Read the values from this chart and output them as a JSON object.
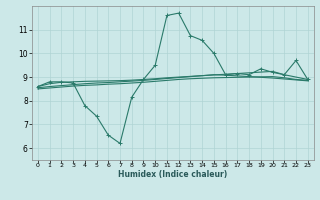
{
  "xlabel": "Humidex (Indice chaleur)",
  "background_color": "#cce8e8",
  "line_color": "#2a7a6a",
  "x_ticks": [
    0,
    1,
    2,
    3,
    4,
    5,
    6,
    7,
    8,
    9,
    10,
    11,
    12,
    13,
    14,
    15,
    16,
    17,
    18,
    19,
    20,
    21,
    22,
    23
  ],
  "y_ticks": [
    6,
    7,
    8,
    9,
    10,
    11
  ],
  "xlim": [
    -0.5,
    23.5
  ],
  "ylim": [
    5.5,
    12.0
  ],
  "series1_x": [
    0,
    1,
    2,
    3,
    4,
    5,
    6,
    7,
    8,
    9,
    10,
    11,
    12,
    13,
    14,
    15,
    16,
    17,
    18,
    19,
    20,
    21,
    22,
    23
  ],
  "series1_y": [
    8.6,
    8.8,
    8.8,
    8.75,
    7.8,
    7.35,
    6.55,
    6.2,
    8.15,
    8.9,
    9.5,
    11.6,
    11.7,
    10.75,
    10.55,
    10.0,
    9.1,
    9.15,
    9.1,
    9.35,
    9.2,
    9.1,
    9.7,
    8.9
  ],
  "series2_x": [
    0,
    1,
    2,
    3,
    4,
    5,
    6,
    7,
    8,
    9,
    10,
    11,
    12,
    13,
    14,
    15,
    16,
    17,
    18,
    19,
    20,
    21,
    22,
    23
  ],
  "series2_y": [
    8.6,
    8.72,
    8.78,
    8.8,
    8.82,
    8.83,
    8.84,
    8.85,
    8.87,
    8.9,
    8.93,
    8.97,
    9.0,
    9.03,
    9.06,
    9.09,
    9.12,
    9.15,
    9.18,
    9.21,
    9.24,
    9.1,
    9.0,
    8.9
  ],
  "series3_x": [
    0,
    1,
    2,
    3,
    4,
    5,
    6,
    7,
    8,
    9,
    10,
    11,
    12,
    13,
    14,
    15,
    16,
    17,
    18,
    19,
    20,
    21,
    22,
    23
  ],
  "series3_y": [
    8.55,
    8.6,
    8.64,
    8.68,
    8.72,
    8.75,
    8.77,
    8.8,
    8.83,
    8.86,
    8.9,
    8.94,
    8.98,
    9.02,
    9.06,
    9.1,
    9.08,
    9.05,
    9.02,
    8.99,
    8.96,
    8.92,
    8.88,
    8.84
  ],
  "series4_x": [
    0,
    1,
    2,
    3,
    4,
    5,
    6,
    7,
    8,
    9,
    10,
    11,
    12,
    13,
    14,
    15,
    16,
    17,
    18,
    19,
    20,
    21,
    22,
    23
  ],
  "series4_y": [
    8.5,
    8.54,
    8.58,
    8.62,
    8.65,
    8.67,
    8.7,
    8.72,
    8.75,
    8.78,
    8.82,
    8.86,
    8.9,
    8.93,
    8.95,
    8.97,
    8.98,
    8.99,
    9.0,
    9.01,
    9.02,
    8.97,
    8.9,
    8.86
  ]
}
